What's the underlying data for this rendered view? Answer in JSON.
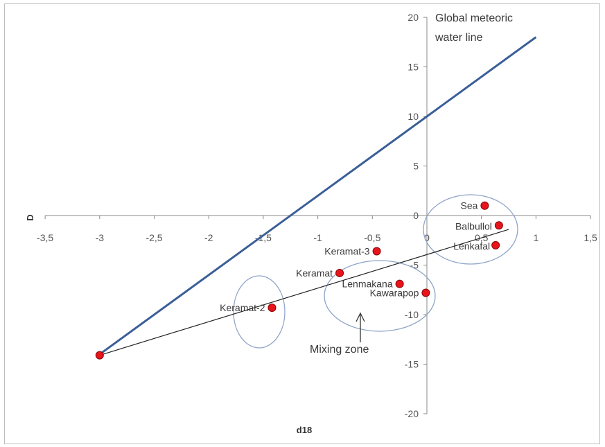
{
  "chart_data": {
    "type": "scatter",
    "xlabel": "d18",
    "ylabel": "D",
    "xlim": [
      -3.5,
      1.5
    ],
    "ylim": [
      -20,
      20
    ],
    "x_ticks": [
      "-3,5",
      "-3",
      "-2,5",
      "-2",
      "-1,5",
      "-1",
      "-0,5",
      "0",
      "0,5",
      "1",
      "1,5"
    ],
    "y_ticks": [
      "20",
      "15",
      "10",
      "5",
      "0",
      "-5",
      "-10",
      "-15",
      "-20"
    ],
    "grid": false,
    "points": [
      {
        "label": "Sea",
        "x": 0.53,
        "y": 1.0
      },
      {
        "label": "Balbullol",
        "x": 0.66,
        "y": -1.0
      },
      {
        "label": "Lenkafal",
        "x": 0.63,
        "y": -3.0
      },
      {
        "label": "Keramat-3",
        "x": -0.46,
        "y": -3.6
      },
      {
        "label": "Keramat",
        "x": -0.8,
        "y": -5.8
      },
      {
        "label": "Lenmakana",
        "x": -0.25,
        "y": -6.9
      },
      {
        "label": "Kawarapop",
        "x": -0.01,
        "y": -7.8
      },
      {
        "label": "Keramat-2",
        "x": -1.42,
        "y": -9.3
      },
      {
        "label": "",
        "x": -3.0,
        "y": -14.1
      }
    ],
    "lines": [
      {
        "name": "Global meteoric water line",
        "color": "#3a5f98",
        "x": [
          -3.0,
          1.0
        ],
        "y": [
          -14.0,
          18.0
        ]
      },
      {
        "name": "mixing line",
        "color": "#222222",
        "x": [
          -3.0,
          0.75
        ],
        "y": [
          -14.1,
          -1.4
        ]
      }
    ],
    "point_color": "#e8141c",
    "annotations": {
      "gmwl_line1": "Global meteoric",
      "gmwl_line2": "water line",
      "mixing_zone": "Mixing  zone"
    }
  }
}
